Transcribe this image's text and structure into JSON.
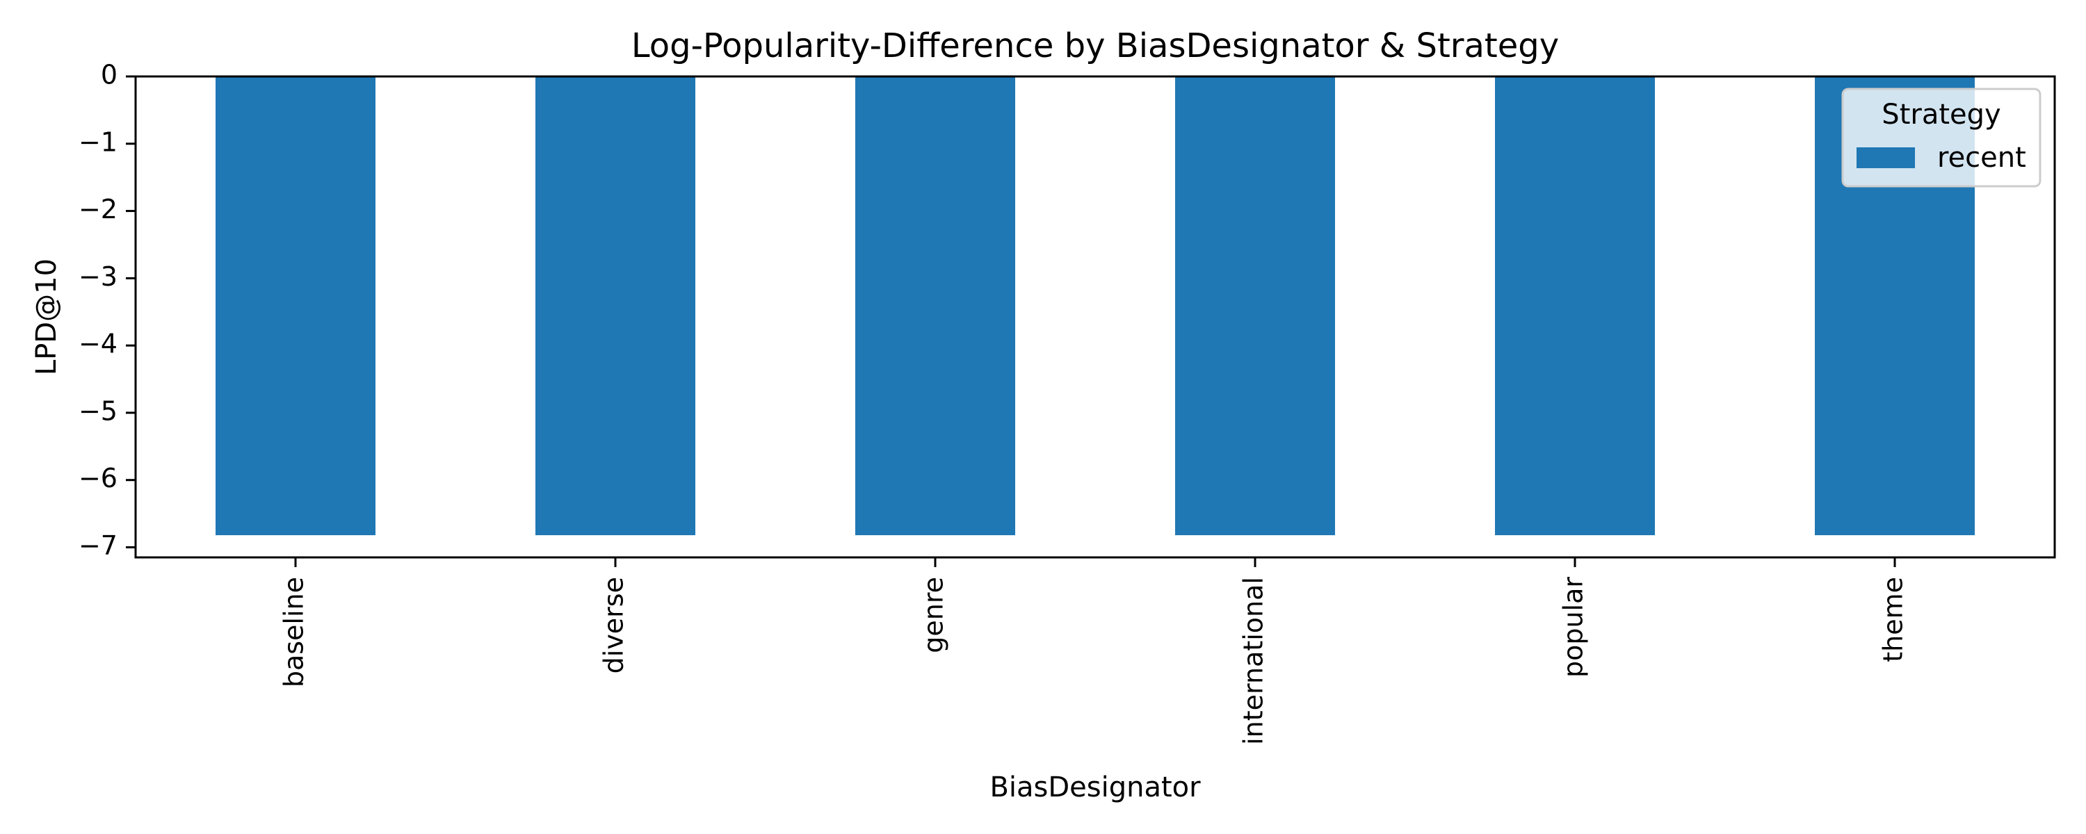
{
  "chart_data": {
    "type": "bar",
    "title": "Log-Popularity-Difference by BiasDesignator & Strategy",
    "xlabel": "BiasDesignator",
    "ylabel": "LPD@10",
    "categories": [
      "baseline",
      "diverse",
      "genre",
      "international",
      "popular",
      "theme"
    ],
    "series": [
      {
        "name": "recent",
        "color": "#1f77b4",
        "values": [
          -6.82,
          -6.82,
          -6.82,
          -6.82,
          -6.82,
          -6.82
        ]
      }
    ],
    "ylim": [
      -7.15,
      0
    ],
    "yticks": [
      0,
      -1,
      -2,
      -3,
      -4,
      -5,
      -6,
      -7
    ],
    "ytick_labels": [
      "0",
      "−1",
      "−2",
      "−3",
      "−4",
      "−5",
      "−6",
      "−7"
    ],
    "grid": false,
    "legend": {
      "title": "Strategy",
      "position": "top-right"
    }
  }
}
